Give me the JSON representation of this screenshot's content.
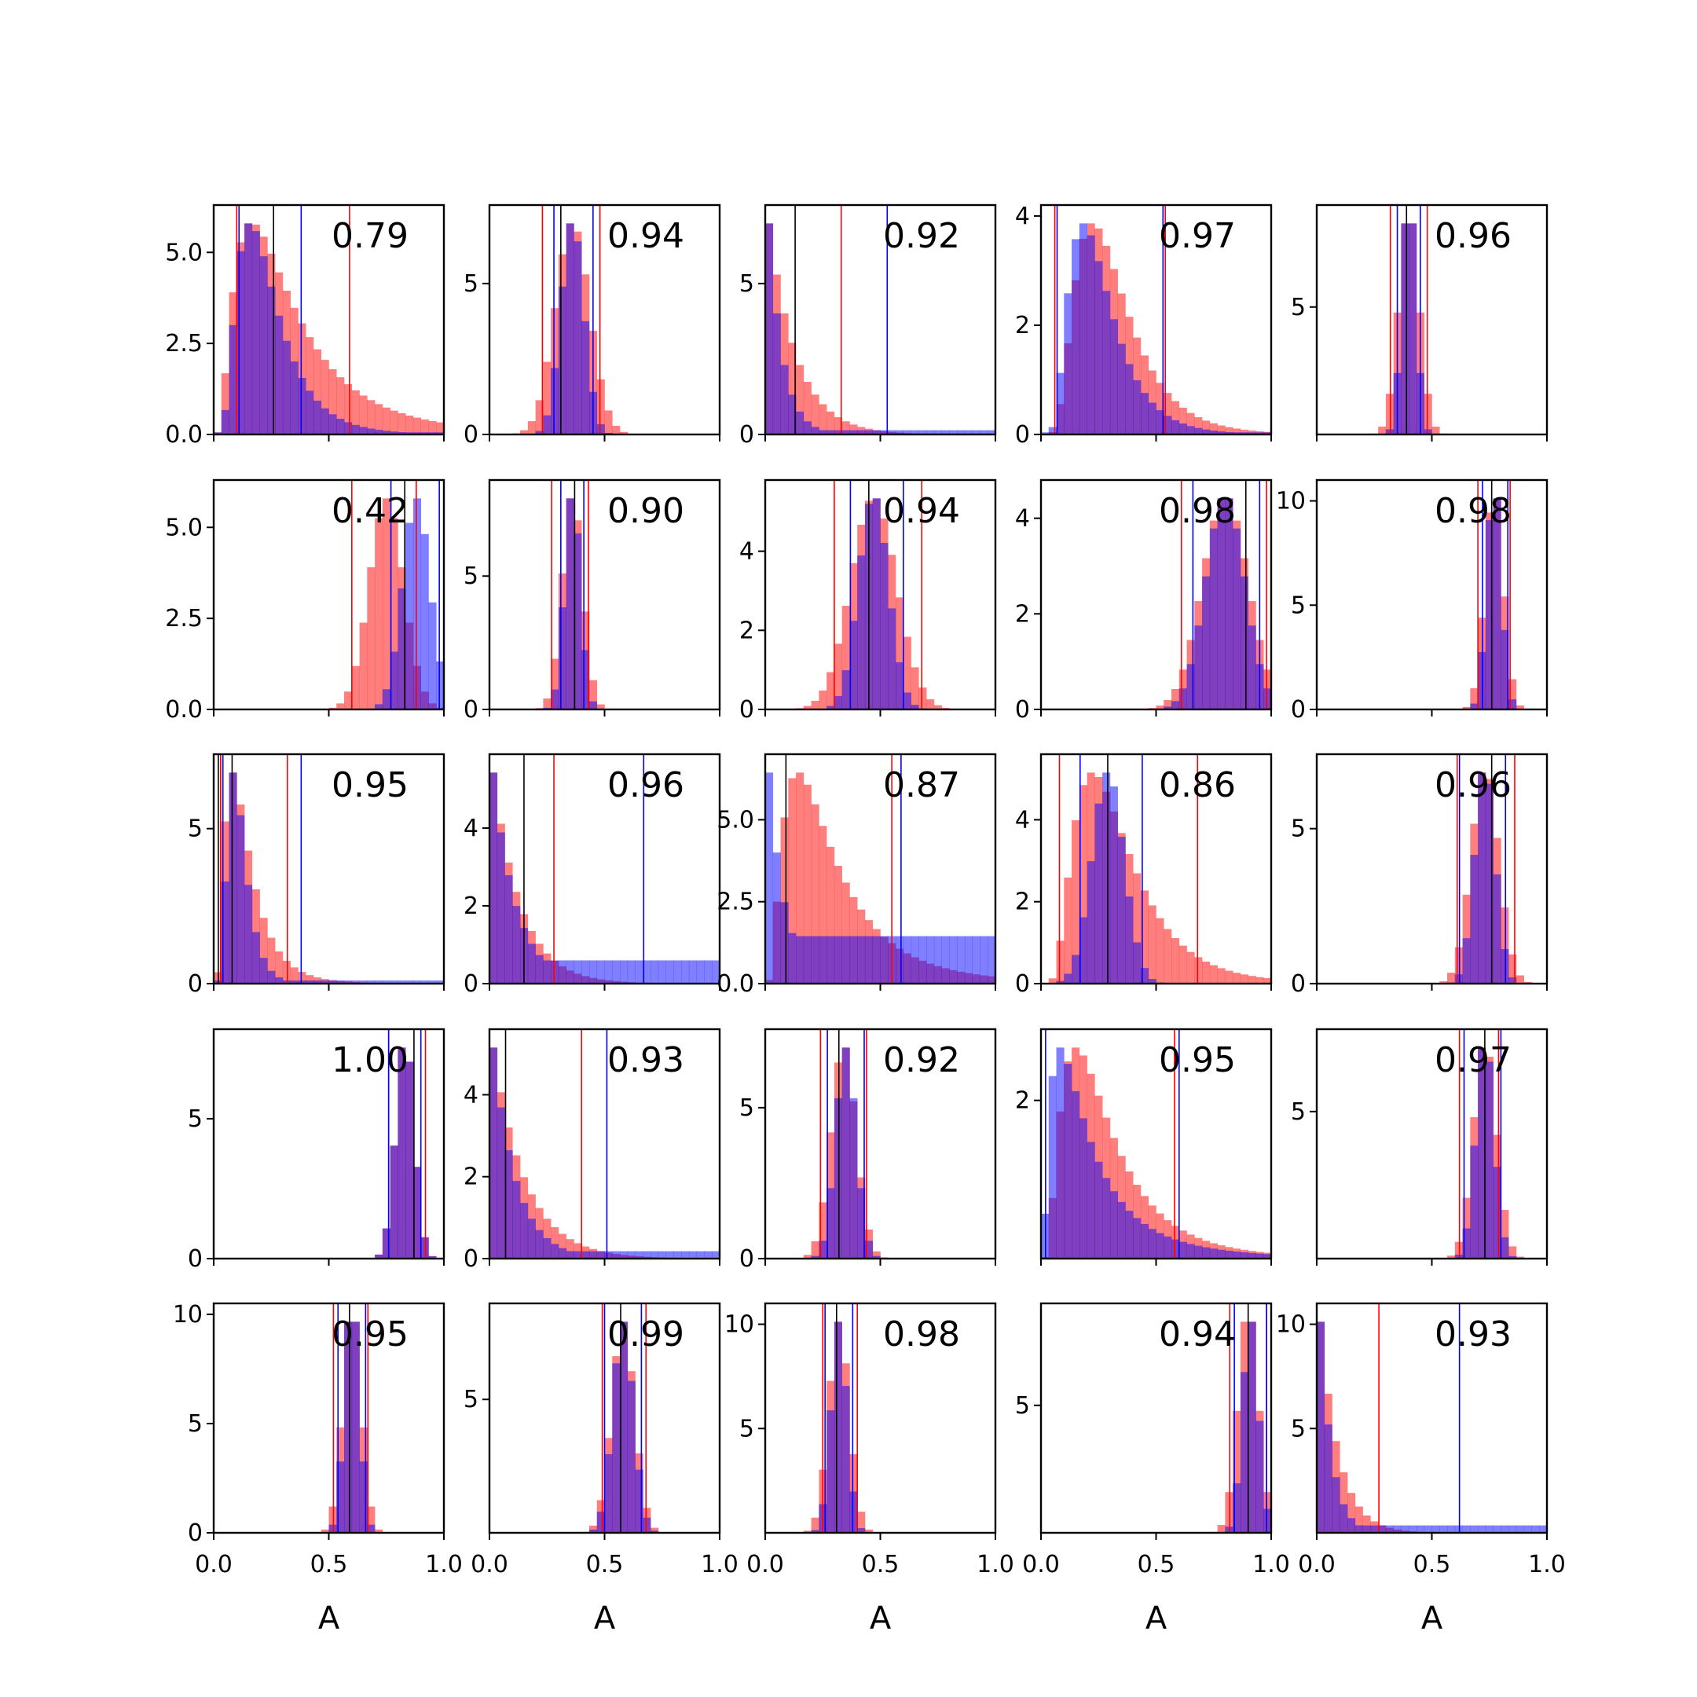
{
  "colors": {
    "red": "#ff0000",
    "blue": "#0000ff",
    "black": "#000000",
    "purple": "#8040bf"
  },
  "chart_data": {
    "type": "histogram-grid",
    "rows": 5,
    "cols": 5,
    "xlabel": "A",
    "xlim": [
      0,
      1
    ],
    "xticks": [
      "0.0",
      "0.5",
      "1.0"
    ],
    "bins": 30,
    "series_colors": {
      "red_hist": "#ff0000",
      "blue_hist": "#0000ff",
      "median_line": "#000000"
    },
    "panels": [
      {
        "label": "0.79",
        "ymax": 6.3,
        "yticks": [
          "0.0",
          "2.5",
          "5.0"
        ],
        "ytick_values": [
          0,
          2.5,
          5.0
        ],
        "red": {
          "dist": "lognorm",
          "mu": -1.25,
          "s": 0.75
        },
        "blue": {
          "dist": "lognorm",
          "mu": -1.55,
          "s": 0.55,
          "tail": 0.02
        },
        "red_lines": [
          0.1,
          0.59
        ],
        "blue_lines": [
          0.11,
          0.38
        ],
        "black_lines": [
          0.26
        ]
      },
      {
        "label": "0.94",
        "ymax": 7.6,
        "yticks": [
          "0",
          "5"
        ],
        "ytick_values": [
          0,
          5
        ],
        "red": {
          "dist": "normal",
          "mu": 0.36,
          "sd": 0.075
        },
        "blue": {
          "dist": "normal",
          "mu": 0.36,
          "sd": 0.05
        },
        "red_lines": [
          0.23,
          0.48
        ],
        "blue_lines": [
          0.28,
          0.45
        ],
        "black_lines": [
          0.31
        ]
      },
      {
        "label": "0.92",
        "ymax": 7.6,
        "yticks": [
          "0",
          "5"
        ],
        "ytick_values": [
          0,
          5
        ],
        "red": {
          "dist": "exp",
          "scale": 0.12
        },
        "blue": {
          "dist": "exp",
          "scale": 0.06,
          "tail": 0.04
        },
        "red_lines": [
          0.33
        ],
        "blue_lines": [
          0.53
        ],
        "black_lines": [
          0.13
        ]
      },
      {
        "label": "0.97",
        "ymax": 4.2,
        "yticks": [
          "0",
          "2",
          "4"
        ],
        "ytick_values": [
          0,
          2,
          4
        ],
        "red": {
          "dist": "lognorm",
          "mu": -1.25,
          "s": 0.5
        },
        "blue": {
          "dist": "lognorm",
          "mu": -1.45,
          "s": 0.5,
          "tail": 0.02
        },
        "red_lines": [
          0.06,
          0.54
        ],
        "blue_lines": [
          0.07,
          0.53
        ],
        "black_lines": []
      },
      {
        "label": "0.96",
        "ymax": 9.0,
        "yticks": [
          "5"
        ],
        "ytick_values": [
          5
        ],
        "red": {
          "dist": "normal",
          "mu": 0.4,
          "sd": 0.045
        },
        "blue": {
          "dist": "normal",
          "mu": 0.4,
          "sd": 0.03
        },
        "red_lines": [
          0.32,
          0.48
        ],
        "blue_lines": [
          0.35,
          0.45
        ],
        "black_lines": [
          0.39
        ]
      },
      {
        "label": "0.42",
        "ymax": 6.3,
        "yticks": [
          "0.0",
          "2.5",
          "5.0"
        ],
        "ytick_values": [
          0,
          2.5,
          5.0
        ],
        "red": {
          "dist": "normal",
          "mu": 0.75,
          "sd": 0.075
        },
        "blue": {
          "dist": "normal",
          "mu": 0.88,
          "sd": 0.06
        },
        "red_lines": [
          0.6,
          0.88
        ],
        "blue_lines": [
          0.77,
          0.98
        ],
        "black_lines": [
          0.83
        ]
      },
      {
        "label": "0.90",
        "ymax": 8.6,
        "yticks": [
          "0",
          "5"
        ],
        "ytick_values": [
          0,
          5
        ],
        "red": {
          "dist": "normal",
          "mu": 0.36,
          "sd": 0.045
        },
        "blue": {
          "dist": "normal",
          "mu": 0.36,
          "sd": 0.035
        },
        "red_lines": [
          0.27,
          0.43
        ],
        "blue_lines": [
          0.31,
          0.41
        ],
        "black_lines": [
          0.37
        ]
      },
      {
        "label": "0.94",
        "ymax": 5.8,
        "yticks": [
          "0",
          "2",
          "4"
        ],
        "ytick_values": [
          0,
          2,
          4
        ],
        "red": {
          "dist": "normal",
          "mu": 0.47,
          "sd": 0.1
        },
        "blue": {
          "dist": "normal",
          "mu": 0.47,
          "sd": 0.065
        },
        "red_lines": [
          0.3,
          0.68
        ],
        "blue_lines": [
          0.37,
          0.6
        ],
        "black_lines": [
          0.45
        ]
      },
      {
        "label": "0.98",
        "ymax": 4.8,
        "yticks": [
          "0",
          "2",
          "4"
        ],
        "ytick_values": [
          0,
          2,
          4
        ],
        "red": {
          "dist": "normal",
          "mu": 0.8,
          "sd": 0.1
        },
        "blue": {
          "dist": "normal",
          "mu": 0.8,
          "sd": 0.085
        },
        "red_lines": [
          0.61,
          0.98
        ],
        "blue_lines": [
          0.66,
          0.95
        ],
        "black_lines": [
          0.89
        ]
      },
      {
        "label": "0.98",
        "ymax": 11.0,
        "yticks": [
          "0",
          "5",
          "10"
        ],
        "ytick_values": [
          0,
          5,
          10
        ],
        "red": {
          "dist": "normal",
          "mu": 0.77,
          "sd": 0.04
        },
        "blue": {
          "dist": "normal",
          "mu": 0.77,
          "sd": 0.032
        },
        "red_lines": [
          0.7,
          0.84
        ],
        "blue_lines": [
          0.72,
          0.83
        ],
        "black_lines": [
          0.76
        ]
      },
      {
        "label": "0.95",
        "ymax": 7.4,
        "yticks": [
          "0",
          "5"
        ],
        "ytick_values": [
          0,
          5
        ],
        "red": {
          "dist": "lognorm",
          "mu": -2.1,
          "s": 0.65
        },
        "blue": {
          "dist": "lognorm",
          "mu": -2.25,
          "s": 0.45,
          "tail": 0.03
        },
        "red_lines": [
          0.03,
          0.32
        ],
        "blue_lines": [
          0.04,
          0.38
        ],
        "black_lines": [
          0.02,
          0.08
        ]
      },
      {
        "label": "0.96",
        "ymax": 5.9,
        "yticks": [
          "0",
          "2",
          "4"
        ],
        "ytick_values": [
          0,
          2,
          4
        ],
        "red": {
          "dist": "exp",
          "scale": 0.12
        },
        "blue": {
          "dist": "exp",
          "scale": 0.1,
          "tail": 0.22
        },
        "red_lines": [
          0.28
        ],
        "blue_lines": [
          0.67
        ],
        "black_lines": [
          0.15
        ]
      },
      {
        "label": "0.87",
        "ymax": 7.0,
        "yticks": [
          "0.0",
          "2.5",
          "5.0"
        ],
        "ytick_values": [
          0,
          2.5,
          5.0
        ],
        "red": {
          "dist": "lognorm",
          "mu": -1.4,
          "s": 0.75
        },
        "blue": {
          "dist": "exp",
          "scale": 0.07,
          "tail": 0.45
        },
        "red_lines": [
          0.55
        ],
        "blue_lines": [
          0.59
        ],
        "black_lines": [
          0.09
        ]
      },
      {
        "label": "0.86",
        "ymax": 5.6,
        "yticks": [
          "0",
          "2",
          "4"
        ],
        "ytick_values": [
          0,
          2,
          4
        ],
        "red": {
          "dist": "lognorm",
          "mu": -1.2,
          "s": 0.55
        },
        "blue": {
          "dist": "normal",
          "mu": 0.29,
          "sd": 0.07
        },
        "red_lines": [
          0.08,
          0.68
        ],
        "blue_lines": [
          0.17,
          0.44
        ],
        "black_lines": [
          0.29
        ]
      },
      {
        "label": "0.96",
        "ymax": 7.4,
        "yticks": [
          "0",
          "5"
        ],
        "ytick_values": [
          0,
          5
        ],
        "red": {
          "dist": "normal",
          "mu": 0.73,
          "sd": 0.06
        },
        "blue": {
          "dist": "normal",
          "mu": 0.73,
          "sd": 0.045
        },
        "red_lines": [
          0.61,
          0.86
        ],
        "blue_lines": [
          0.62,
          0.82
        ],
        "black_lines": [
          0.76
        ]
      },
      {
        "label": "1.00",
        "ymax": 8.2,
        "yticks": [
          "0",
          "5"
        ],
        "ytick_values": [
          0,
          5
        ],
        "red": {
          "dist": "normal",
          "mu": 0.83,
          "sd": 0.04
        },
        "blue": {
          "dist": "normal",
          "mu": 0.83,
          "sd": 0.04
        },
        "red_lines": [
          0.76,
          0.92
        ],
        "blue_lines": [
          0.76,
          0.9
        ],
        "black_lines": [
          0.87
        ]
      },
      {
        "label": "0.93",
        "ymax": 5.6,
        "yticks": [
          "0",
          "2",
          "4"
        ],
        "ytick_values": [
          0,
          2,
          4
        ],
        "red": {
          "dist": "exp",
          "scale": 0.14
        },
        "blue": {
          "dist": "exp",
          "scale": 0.1,
          "tail": 0.07
        },
        "red_lines": [
          0.4
        ],
        "blue_lines": [
          0.51
        ],
        "black_lines": [
          0.07
        ]
      },
      {
        "label": "0.92",
        "ymax": 7.6,
        "yticks": [
          "0",
          "5"
        ],
        "ytick_values": [
          0,
          5
        ],
        "red": {
          "dist": "normal",
          "mu": 0.34,
          "sd": 0.055
        },
        "blue": {
          "dist": "normal",
          "mu": 0.35,
          "sd": 0.045
        },
        "red_lines": [
          0.24,
          0.44
        ],
        "blue_lines": [
          0.27,
          0.43
        ],
        "black_lines": [
          0.32
        ]
      },
      {
        "label": "0.95",
        "ymax": 2.9,
        "yticks": [
          "2"
        ],
        "ytick_values": [
          2
        ],
        "red": {
          "dist": "lognorm",
          "mu": -1.4,
          "s": 0.7
        },
        "blue": {
          "dist": "lognorm",
          "mu": -1.7,
          "s": 0.9,
          "tail": 0.03
        },
        "red_lines": [
          0.58
        ],
        "blue_lines": [
          0.02,
          0.6
        ],
        "black_lines": []
      },
      {
        "label": "0.97",
        "ymax": 7.8,
        "yticks": [
          "5"
        ],
        "ytick_values": [
          5
        ],
        "red": {
          "dist": "normal",
          "mu": 0.73,
          "sd": 0.05
        },
        "blue": {
          "dist": "normal",
          "mu": 0.73,
          "sd": 0.04
        },
        "red_lines": [
          0.62,
          0.79
        ],
        "blue_lines": [
          0.64,
          0.8
        ],
        "black_lines": [
          0.73
        ]
      },
      {
        "label": "0.95",
        "ymax": 10.5,
        "yticks": [
          "0",
          "5",
          "10"
        ],
        "ytick_values": [
          0,
          5,
          10
        ],
        "red": {
          "dist": "normal",
          "mu": 0.6,
          "sd": 0.04
        },
        "blue": {
          "dist": "normal",
          "mu": 0.6,
          "sd": 0.032
        },
        "red_lines": [
          0.52,
          0.67
        ],
        "blue_lines": [
          0.54,
          0.66
        ],
        "black_lines": [
          0.59
        ]
      },
      {
        "label": "0.99",
        "ymax": 8.6,
        "yticks": [
          "5"
        ],
        "ytick_values": [
          5
        ],
        "red": {
          "dist": "normal",
          "mu": 0.58,
          "sd": 0.05
        },
        "blue": {
          "dist": "normal",
          "mu": 0.58,
          "sd": 0.045
        },
        "red_lines": [
          0.49,
          0.68
        ],
        "blue_lines": [
          0.5,
          0.66
        ],
        "black_lines": [
          0.57
        ]
      },
      {
        "label": "0.98",
        "ymax": 11.0,
        "yticks": [
          "5",
          "10"
        ],
        "ytick_values": [
          5,
          10
        ],
        "red": {
          "dist": "normal",
          "mu": 0.32,
          "sd": 0.045
        },
        "blue": {
          "dist": "normal",
          "mu": 0.32,
          "sd": 0.035
        },
        "red_lines": [
          0.25,
          0.4
        ],
        "blue_lines": [
          0.26,
          0.38
        ],
        "black_lines": [
          0.31
        ]
      },
      {
        "label": "0.94",
        "ymax": 9.0,
        "yticks": [
          "5"
        ],
        "ytick_values": [
          5
        ],
        "red": {
          "dist": "normal",
          "mu": 0.9,
          "sd": 0.045
        },
        "blue": {
          "dist": "normal",
          "mu": 0.91,
          "sd": 0.035
        },
        "red_lines": [
          0.82,
          0.98
        ],
        "blue_lines": [
          0.84,
          0.98
        ],
        "black_lines": [
          0.9
        ]
      },
      {
        "label": "0.93",
        "ymax": 11.0,
        "yticks": [
          "5",
          "10"
        ],
        "ytick_values": [
          5,
          10
        ],
        "red": {
          "dist": "exp",
          "scale": 0.08
        },
        "blue": {
          "dist": "exp",
          "scale": 0.05,
          "tail": 0.07
        },
        "red_lines": [
          0.27
        ],
        "blue_lines": [
          0.62
        ],
        "black_lines": []
      }
    ]
  }
}
